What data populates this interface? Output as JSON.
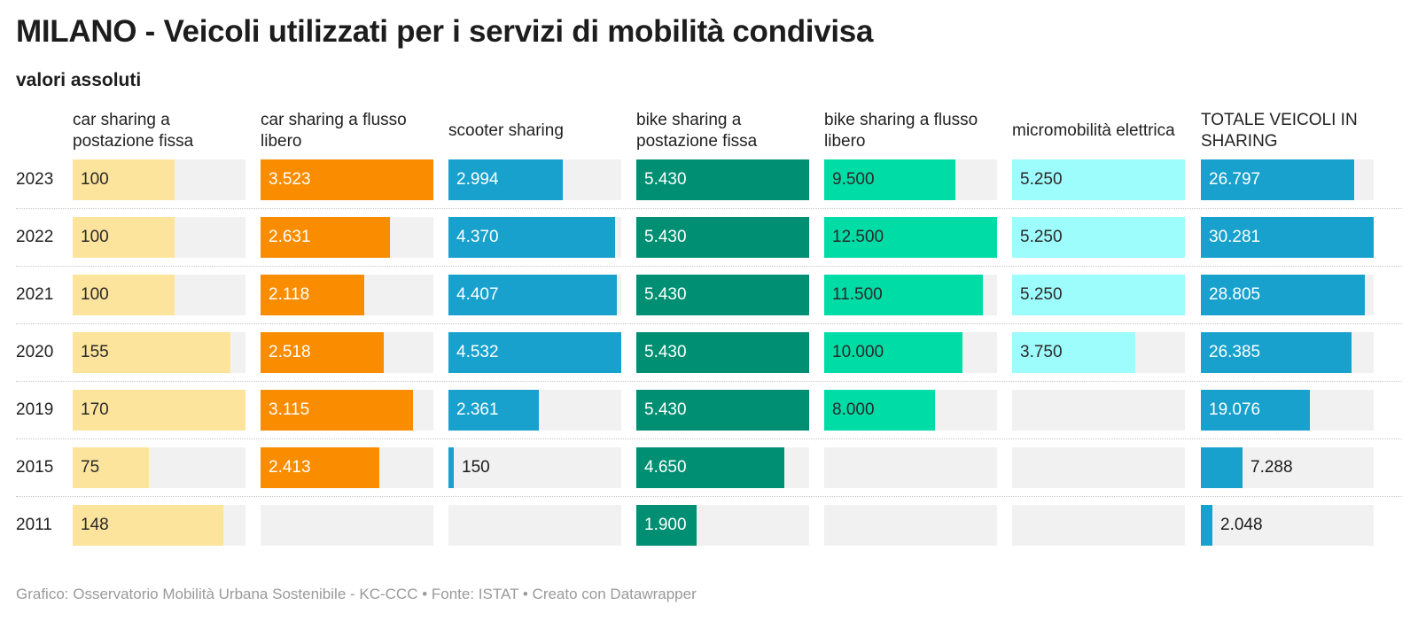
{
  "title": "MILANO - Veicoli utilizzati per i servizi di mobilità condivisa",
  "subtitle": "valori assoluti",
  "footer": "Grafico: Osservatorio Mobilità Urbana Sostenibile - KC-CCC • Fonte: ISTAT • Creato con Datawrapper",
  "chart_data": {
    "type": "table",
    "rows": [
      "2023",
      "2022",
      "2021",
      "2020",
      "2019",
      "2015",
      "2011"
    ],
    "columns": [
      {
        "name": "car sharing a postazione fissa",
        "color": "#fde49c",
        "dark_text": true,
        "max": 170,
        "values": [
          100,
          100,
          100,
          155,
          170,
          75,
          148
        ],
        "labels": [
          "100",
          "100",
          "100",
          "155",
          "170",
          "75",
          "148"
        ]
      },
      {
        "name": "car sharing a flusso libero",
        "color": "#fa8c00",
        "dark_text": false,
        "max": 3523,
        "values": [
          3523,
          2631,
          2118,
          2518,
          3115,
          2413,
          null
        ],
        "labels": [
          "3.523",
          "2.631",
          "2.118",
          "2.518",
          "3.115",
          "2.413",
          ""
        ]
      },
      {
        "name": "scooter sharing",
        "color": "#18a1cd",
        "dark_text": false,
        "max": 4532,
        "values": [
          2994,
          4370,
          4407,
          4532,
          2361,
          150,
          null
        ],
        "labels": [
          "2.994",
          "4.370",
          "4.407",
          "4.532",
          "2.361",
          "150",
          ""
        ]
      },
      {
        "name": "bike sharing a postazione fissa",
        "color": "#008f72",
        "dark_text": false,
        "max": 5430,
        "values": [
          5430,
          5430,
          5430,
          5430,
          5430,
          4650,
          1900
        ],
        "labels": [
          "5.430",
          "5.430",
          "5.430",
          "5.430",
          "5.430",
          "4.650",
          "1.900"
        ]
      },
      {
        "name": "bike sharing a flusso libero",
        "color": "#00dca6",
        "dark_text": true,
        "max": 12500,
        "values": [
          9500,
          12500,
          11500,
          10000,
          8000,
          null,
          null
        ],
        "labels": [
          "9.500",
          "12.500",
          "11.500",
          "10.000",
          "8.000",
          "",
          ""
        ]
      },
      {
        "name": "micromobilità elettrica",
        "color": "#9dfcfc",
        "dark_text": true,
        "max": 5250,
        "values": [
          5250,
          5250,
          5250,
          3750,
          null,
          null,
          null
        ],
        "labels": [
          "5.250",
          "5.250",
          "5.250",
          "3.750",
          "",
          "",
          ""
        ]
      },
      {
        "name": "TOTALE VEICOLI IN SHARING",
        "color": "#18a1cd",
        "dark_text": false,
        "max": 30281,
        "values": [
          26797,
          30281,
          28805,
          26385,
          19076,
          7288,
          2048
        ],
        "labels": [
          "26.797",
          "30.281",
          "28.805",
          "26.385",
          "19.076",
          "7.288",
          "2.048"
        ]
      }
    ]
  }
}
